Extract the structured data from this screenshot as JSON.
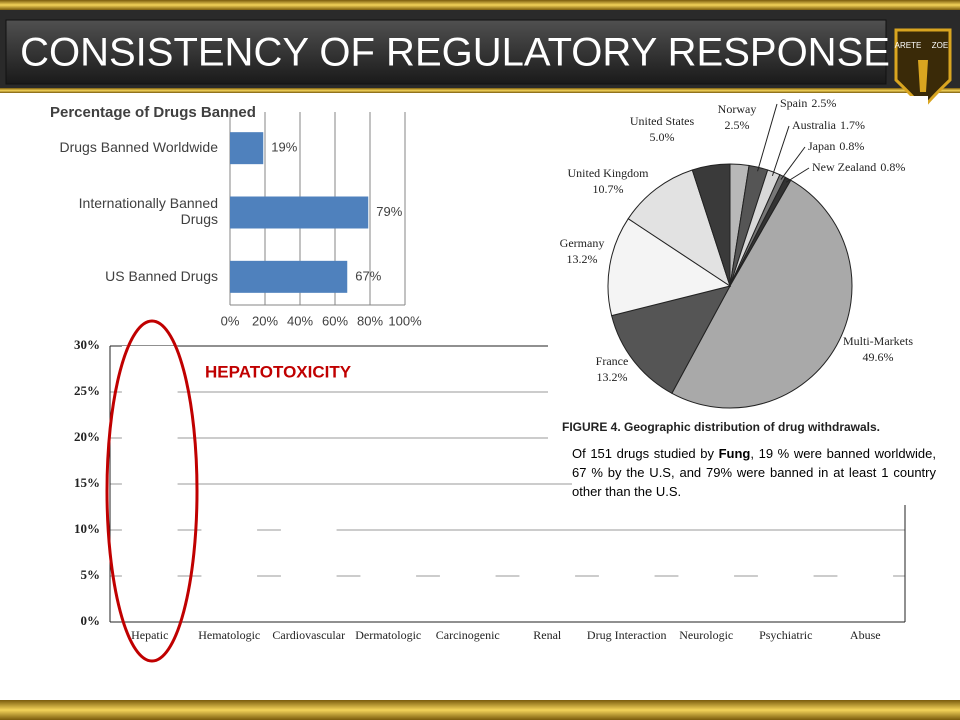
{
  "slide": {
    "title": "CONSISTENCY OF REGULATORY RESPONSE",
    "logo": [
      "ARETE",
      "ZOE"
    ],
    "note": {
      "before": "Of 151 drugs studied by ",
      "bold": "Fung",
      "after": ", 19 % were banned worldwide, 67 % by the U.S, and 79% were banned in at least 1 country other than the U.S."
    }
  },
  "chart_data": [
    {
      "type": "hbar",
      "title": "Percentage of Drugs Banned",
      "categories": [
        "Drugs Banned Worldwide",
        "Internationally Banned Drugs",
        "US Banned Drugs"
      ],
      "values": [
        19,
        79,
        67
      ],
      "value_labels": [
        "19%",
        "79%",
        "67%"
      ],
      "color": "#4f81bd",
      "xlim": [
        0,
        100
      ],
      "xticks": [
        {
          "value": 0,
          "label": "0%"
        },
        {
          "value": 20,
          "label": "20%"
        },
        {
          "value": 40,
          "label": "40%"
        },
        {
          "value": 60,
          "label": "60%"
        },
        {
          "value": 80,
          "label": "80%"
        },
        {
          "value": 100,
          "label": "100%"
        }
      ],
      "grid": true
    },
    {
      "type": "pie",
      "categories": [
        "Norway",
        "Spain",
        "Australia",
        "Japan",
        "New Zealand",
        "Multi-Markets",
        "France",
        "Germany",
        "United Kingdom",
        "United States"
      ],
      "values": [
        2.5,
        2.5,
        1.7,
        0.8,
        0.8,
        49.6,
        13.2,
        13.2,
        10.7,
        5.0
      ],
      "value_labels": [
        "2.5%",
        "2.5%",
        "1.7%",
        "0.8%",
        "0.8%",
        "49.6%",
        "13.2%",
        "13.2%",
        "10.7%",
        "5.0%"
      ],
      "colors": [
        "#b8b8b8",
        "#555555",
        "#d8d8d8",
        "#777777",
        "#333333",
        "#a9a9a9",
        "#555555",
        "#f4f4f4",
        "#e2e2e2",
        "#3a3a3a"
      ],
      "caption": "FIGURE 4. Geographic distribution of drug withdrawals."
    },
    {
      "type": "bar",
      "categories": [
        "Hepatic",
        "Hematologic",
        "Cardiovascular",
        "Dermatologic",
        "Carcinogenic",
        "Renal",
        "Drug Interaction",
        "Neurologic",
        "Psychiatric",
        "Abuse"
      ],
      "values": [
        30,
        12,
        12,
        7,
        7,
        6,
        6,
        6,
        6,
        6
      ],
      "color": "#ffffff",
      "ylim": [
        0,
        30
      ],
      "yticks": [
        {
          "value": 0,
          "label": "0%"
        },
        {
          "value": 5,
          "label": "5%"
        },
        {
          "value": 10,
          "label": "10%"
        },
        {
          "value": 15,
          "label": "15%"
        },
        {
          "value": 20,
          "label": "20%"
        },
        {
          "value": 25,
          "label": "25%"
        },
        {
          "value": 30,
          "label": "30%"
        }
      ],
      "grid": true,
      "annotation": "HEPATOTOXICITY"
    }
  ]
}
